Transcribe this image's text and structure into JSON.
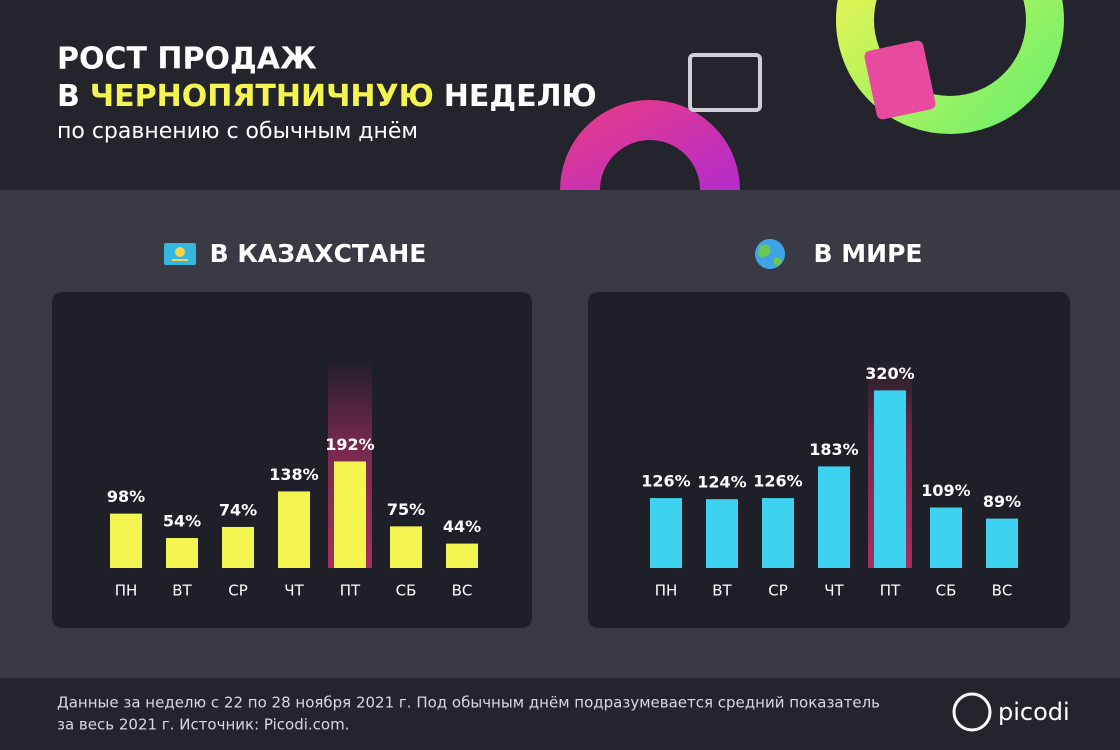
{
  "header": {
    "title_line1": "РОСТ ПРОДАЖ",
    "title_line2": [
      "В",
      "ЧЕРНОПЯТНИЧНУЮ",
      "НЕДЕЛЮ"
    ],
    "subtitle": "по сравнению с обычным днём"
  },
  "chart_data": [
    {
      "type": "bar",
      "title": "В КАЗАХСТАНЕ",
      "categories": [
        "ПН",
        "ВТ",
        "СР",
        "ЧТ",
        "ПТ",
        "СБ",
        "ВС"
      ],
      "values": [
        98,
        54,
        74,
        138,
        192,
        75,
        44
      ],
      "value_labels": [
        "98%",
        "54%",
        "74%",
        "138%",
        "192%",
        "75%",
        "44%"
      ],
      "color": "#f5f552"
    },
    {
      "type": "bar",
      "title": "В МИРЕ",
      "categories": [
        "ПН",
        "ВТ",
        "СР",
        "ЧТ",
        "ПТ",
        "СБ",
        "ВС"
      ],
      "values": [
        126,
        124,
        126,
        183,
        320,
        109,
        89
      ],
      "value_labels": [
        "126%",
        "124%",
        "126%",
        "183%",
        "320%",
        "109%",
        "89%"
      ],
      "color": "#3dd3f0"
    }
  ],
  "footer": {
    "note_line1": "Данные за неделю с 22 по 28 ноября 2021 г. Под обычным днём подразумевается средний показатель",
    "note_line2": "за весь 2021 г. Источник: Picodi.com.",
    "logo": "picodi"
  }
}
